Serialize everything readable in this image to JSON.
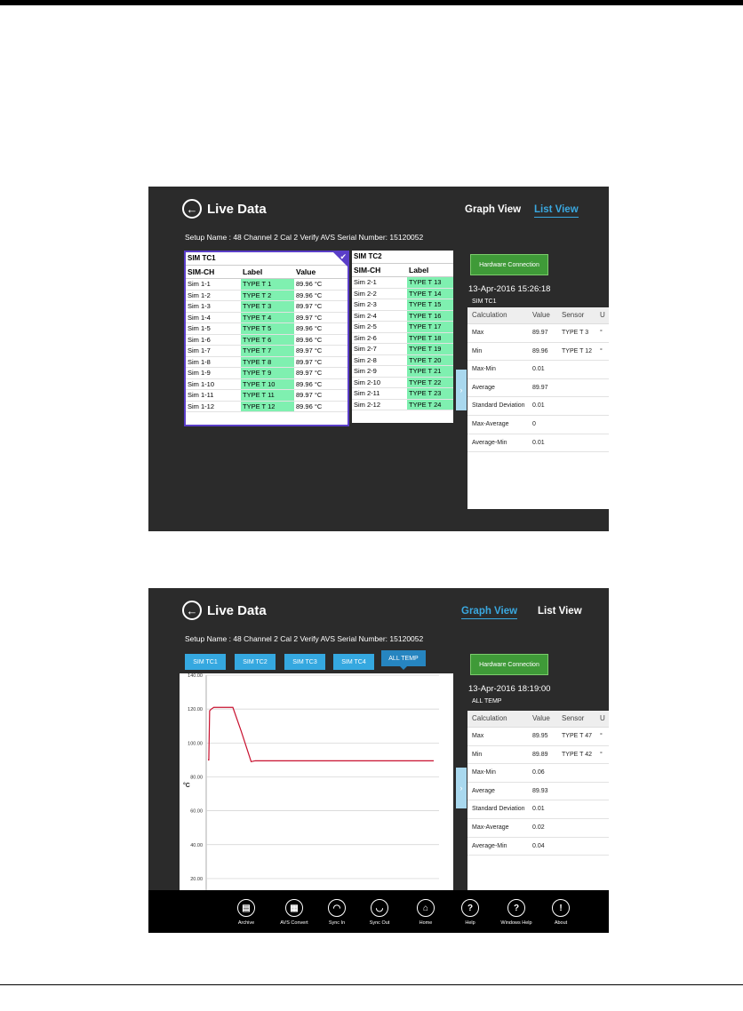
{
  "top": {
    "title": "Live Data",
    "graph_view": "Graph View",
    "list_view": "List View",
    "setup_text": "Setup Name : 48 Channel 2 Cal 2 Verify   AVS Serial Number:  15120052",
    "hw_button": "Hardware Connection",
    "datetime": "13-Apr-2016 15:26:18",
    "group": "SIM TC1",
    "tc1": {
      "title": "SIM TC1",
      "headers": [
        "SIM-CH",
        "Label",
        "Value"
      ],
      "rows": [
        [
          "Sim 1-1",
          "TYPE T 1",
          "89.96 °C"
        ],
        [
          "Sim 1-2",
          "TYPE T 2",
          "89.96 °C"
        ],
        [
          "Sim 1-3",
          "TYPE T 3",
          "89.97 °C"
        ],
        [
          "Sim 1-4",
          "TYPE T 4",
          "89.97 °C"
        ],
        [
          "Sim 1-5",
          "TYPE T 5",
          "89.96 °C"
        ],
        [
          "Sim 1-6",
          "TYPE T 6",
          "89.96 °C"
        ],
        [
          "Sim 1-7",
          "TYPE T 7",
          "89.97 °C"
        ],
        [
          "Sim 1-8",
          "TYPE T 8",
          "89.97 °C"
        ],
        [
          "Sim 1-9",
          "TYPE T 9",
          "89.97 °C"
        ],
        [
          "Sim 1-10",
          "TYPE T 10",
          "89.96 °C"
        ],
        [
          "Sim 1-11",
          "TYPE T 11",
          "89.97 °C"
        ],
        [
          "Sim 1-12",
          "TYPE T 12",
          "89.96 °C"
        ]
      ]
    },
    "tc2": {
      "title": "SIM TC2",
      "headers": [
        "SIM-CH",
        "Label"
      ],
      "rows": [
        [
          "Sim 2-1",
          "TYPE T 13"
        ],
        [
          "Sim 2-2",
          "TYPE T 14"
        ],
        [
          "Sim 2-3",
          "TYPE T 15"
        ],
        [
          "Sim 2-4",
          "TYPE T 16"
        ],
        [
          "Sim 2-5",
          "TYPE T 17"
        ],
        [
          "Sim 2-6",
          "TYPE T 18"
        ],
        [
          "Sim 2-7",
          "TYPE T 19"
        ],
        [
          "Sim 2-8",
          "TYPE T 20"
        ],
        [
          "Sim 2-9",
          "TYPE T 21"
        ],
        [
          "Sim 2-10",
          "TYPE T 22"
        ],
        [
          "Sim 2-11",
          "TYPE T 23"
        ],
        [
          "Sim 2-12",
          "TYPE T 24"
        ]
      ]
    },
    "stats": {
      "headers": [
        "Calculation",
        "Value",
        "Sensor",
        "U"
      ],
      "rows": [
        [
          "Max",
          "89.97",
          "TYPE T 3",
          "°"
        ],
        [
          "Min",
          "89.96",
          "TYPE T 12",
          "°"
        ],
        [
          "Max-Min",
          "0.01",
          "",
          ""
        ],
        [
          "Average",
          "89.97",
          "",
          ""
        ],
        [
          "Standard Deviation",
          "0.01",
          "",
          ""
        ],
        [
          "Max-Average",
          "0",
          "",
          ""
        ],
        [
          "Average-Min",
          "0.01",
          "",
          ""
        ]
      ]
    }
  },
  "bottom": {
    "title": "Live Data",
    "graph_view": "Graph View",
    "list_view": "List View",
    "setup_text": "Setup Name : 48 Channel 2 Cal 2 Verify   AVS Serial Number:  15120052",
    "chips": [
      "SIM TC1",
      "SIM TC2",
      "SIM TC3",
      "SIM TC4",
      "ALL TEMP"
    ],
    "hw_button": "Hardware Connection",
    "datetime": "13-Apr-2016 18:19:00",
    "group": "ALL TEMP",
    "stats": {
      "headers": [
        "Calculation",
        "Value",
        "Sensor",
        "U"
      ],
      "rows": [
        [
          "Max",
          "89.95",
          "TYPE T 47",
          "°"
        ],
        [
          "Min",
          "89.89",
          "TYPE T 42",
          "°"
        ],
        [
          "Max-Min",
          "0.06",
          "",
          ""
        ],
        [
          "Average",
          "89.93",
          "",
          ""
        ],
        [
          "Standard Deviation",
          "0.01",
          "",
          ""
        ],
        [
          "Max-Average",
          "0.02",
          "",
          ""
        ],
        [
          "Average-Min",
          "0.04",
          "",
          ""
        ]
      ]
    },
    "tools": [
      "Archive",
      "AVS Convert",
      "Sync In",
      "Sync Out",
      "Home",
      "Help",
      "Windows Help",
      "About"
    ],
    "tool_icons": [
      "archive-icon",
      "avs-convert-icon",
      "sync-in-icon",
      "sync-out-icon",
      "home-icon",
      "help-icon",
      "windows-help-icon",
      "about-icon"
    ],
    "tool_glyphs": [
      "▤",
      "▦",
      "◠",
      "◡",
      "⌂",
      "?",
      "?",
      "!"
    ]
  },
  "chart_data": {
    "type": "line",
    "title": "",
    "xlabel": "",
    "ylabel": "°C",
    "ylim": [
      10,
      140
    ],
    "yticks": [
      "140.00",
      "120.00",
      "100.00",
      "80.00",
      "60.00",
      "40.00",
      "20.00"
    ],
    "grid": true,
    "series": [
      {
        "color": "#c8102e",
        "values": [
          90,
          90,
          119,
          120,
          121,
          121,
          121,
          121,
          121,
          107,
          95,
          89,
          89.5,
          89.5,
          89.5,
          89.5,
          89.5,
          89.5,
          89.5,
          89.5
        ]
      }
    ],
    "x": [
      0,
      1,
      2,
      4,
      7,
      10,
      15,
      22,
      30,
      40,
      48,
      52,
      57,
      70,
      100,
      130,
      160,
      200,
      240,
      272
    ]
  }
}
